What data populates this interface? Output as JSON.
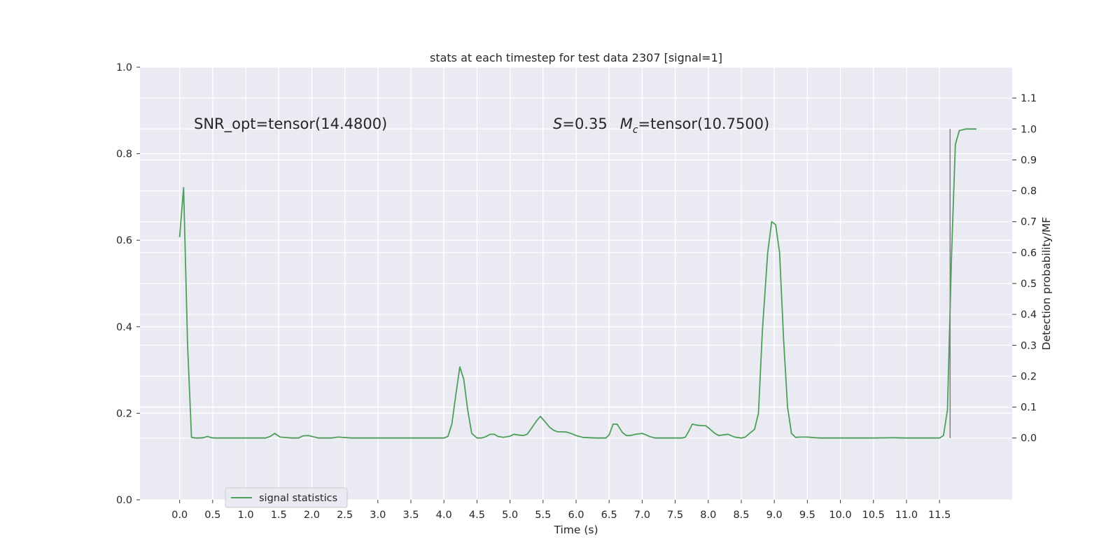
{
  "chart_data": {
    "type": "line",
    "title": "stats at each timestep for test data 2307 [signal=1]",
    "xlabel": "Time (s)",
    "ylabel_left": "",
    "ylabel_right": "Detection probability/MF",
    "xlim": [
      -0.6,
      12.6
    ],
    "ylim_left": [
      0.0,
      1.0
    ],
    "ylim_right": [
      -0.2,
      1.2
    ],
    "xticks": [
      0.0,
      0.5,
      1.0,
      1.5,
      2.0,
      2.5,
      3.0,
      3.5,
      4.0,
      4.5,
      5.0,
      5.5,
      6.0,
      6.5,
      7.0,
      7.5,
      8.0,
      8.5,
      9.0,
      9.5,
      10.0,
      10.5,
      11.0,
      11.5
    ],
    "xtick_labels": [
      "0.0",
      "0.5",
      "1.0",
      "1.5",
      "2.0",
      "2.5",
      "3.0",
      "3.5",
      "4.0",
      "4.5",
      "5.0",
      "5.5",
      "6.0",
      "6.5",
      "7.0",
      "7.5",
      "8.0",
      "8.5",
      "9.0",
      "9.5",
      "10.0",
      "10.5",
      "11.0",
      "11.5"
    ],
    "yticks_left": [
      0.0,
      0.2,
      0.4,
      0.6,
      0.8,
      1.0
    ],
    "ytick_labels_left": [
      "0.0",
      "0.2",
      "0.4",
      "0.6",
      "0.8",
      "1.0"
    ],
    "yticks_right": [
      0.0,
      0.1,
      0.2,
      0.3,
      0.4,
      0.5,
      0.6,
      0.7,
      0.8,
      0.9,
      1.0,
      1.1
    ],
    "ytick_labels_right": [
      "0.0",
      "0.1",
      "0.2",
      "0.3",
      "0.4",
      "0.5",
      "0.6",
      "0.7",
      "0.8",
      "0.9",
      "1.0",
      "1.1"
    ],
    "grid": true,
    "legend": {
      "placement": "lower-left",
      "entries": [
        "signal statistics"
      ]
    },
    "annotations": {
      "snr": "SNR_opt=tensor(14.4800)",
      "s_symbol": "S",
      "s_value": "=0.35",
      "mc_symbol": "M",
      "mc_subscript": "c",
      "mc_value": "=tensor(10.7500)"
    },
    "series": [
      {
        "name": "signal statistics",
        "axis": "right",
        "color": "#4c9f5a",
        "x": [
          0.0,
          0.06,
          0.12,
          0.18,
          0.24,
          0.3,
          0.36,
          0.42,
          0.48,
          0.54,
          0.6,
          0.8,
          1.0,
          1.2,
          1.3,
          1.37,
          1.44,
          1.52,
          1.7,
          1.8,
          1.87,
          1.95,
          2.1,
          2.3,
          2.4,
          2.6,
          3.0,
          3.5,
          4.0,
          4.06,
          4.12,
          4.18,
          4.24,
          4.3,
          4.36,
          4.42,
          4.5,
          4.56,
          4.62,
          4.7,
          4.76,
          4.82,
          4.9,
          5.0,
          5.06,
          5.12,
          5.2,
          5.26,
          5.32,
          5.4,
          5.46,
          5.52,
          5.6,
          5.66,
          5.72,
          5.8,
          5.86,
          5.92,
          6.0,
          6.1,
          6.3,
          6.45,
          6.5,
          6.56,
          6.62,
          6.7,
          6.76,
          6.82,
          6.9,
          7.0,
          7.06,
          7.12,
          7.2,
          7.4,
          7.6,
          7.65,
          7.7,
          7.76,
          7.82,
          7.9,
          7.96,
          8.02,
          8.1,
          8.16,
          8.22,
          8.3,
          8.4,
          8.5,
          8.56,
          8.62,
          8.7,
          8.76,
          8.82,
          8.9,
          8.96,
          9.02,
          9.08,
          9.14,
          9.2,
          9.26,
          9.32,
          9.4,
          9.5,
          9.56,
          9.62,
          9.7,
          10.0,
          10.5,
          10.8,
          11.0,
          11.5,
          11.56,
          11.62,
          11.68,
          11.74,
          11.8,
          11.9,
          12.0,
          12.06
        ],
        "values": [
          0.65,
          0.81,
          0.3,
          0.002,
          0.0,
          0.0,
          0.001,
          0.005,
          0.001,
          0.0,
          0.0,
          0.0,
          0.0,
          0.0,
          0.0,
          0.005,
          0.015,
          0.003,
          0.0,
          0.0,
          0.007,
          0.008,
          0.0,
          0.0,
          0.003,
          0.0,
          0.0,
          0.0,
          0.0,
          0.005,
          0.045,
          0.14,
          0.23,
          0.19,
          0.09,
          0.015,
          0.0,
          0.0,
          0.003,
          0.012,
          0.012,
          0.005,
          0.002,
          0.006,
          0.012,
          0.01,
          0.008,
          0.012,
          0.03,
          0.055,
          0.07,
          0.055,
          0.035,
          0.025,
          0.02,
          0.02,
          0.019,
          0.015,
          0.008,
          0.002,
          0.0,
          0.0,
          0.01,
          0.045,
          0.045,
          0.018,
          0.008,
          0.008,
          0.012,
          0.015,
          0.01,
          0.004,
          0.0,
          0.0,
          0.0,
          0.002,
          0.02,
          0.045,
          0.042,
          0.04,
          0.04,
          0.03,
          0.015,
          0.008,
          0.01,
          0.012,
          0.003,
          0.0,
          0.003,
          0.014,
          0.028,
          0.08,
          0.35,
          0.6,
          0.7,
          0.69,
          0.6,
          0.32,
          0.1,
          0.015,
          0.002,
          0.003,
          0.003,
          0.002,
          0.001,
          0.0,
          0.0,
          0.0,
          0.001,
          0.0,
          0.0,
          0.008,
          0.09,
          0.58,
          0.95,
          0.995,
          1.0,
          1.0,
          1.0
        ]
      },
      {
        "name": "",
        "axis": "right",
        "color": "#7f7f7f",
        "x": [
          11.66,
          11.66
        ],
        "values": [
          0.0,
          1.0
        ]
      }
    ]
  }
}
